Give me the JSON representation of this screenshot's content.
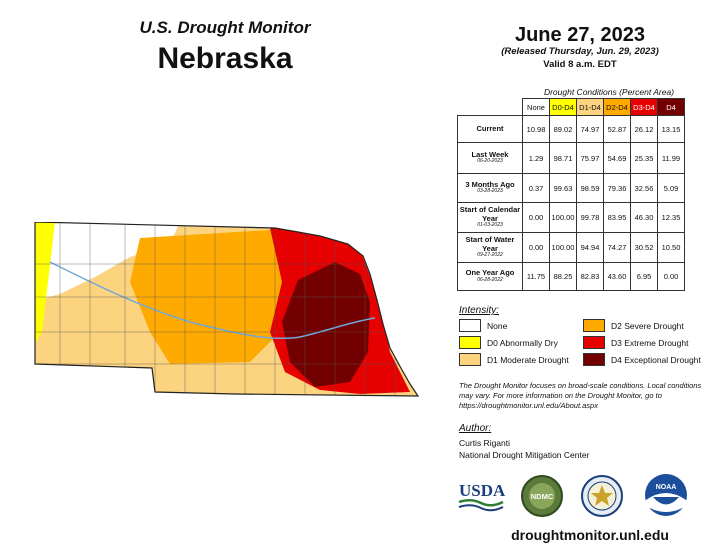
{
  "header": {
    "title": "U.S. Drought Monitor",
    "state": "Nebraska",
    "date": "June 27, 2023",
    "released": "(Released Thursday, Jun. 29, 2023)",
    "valid": "Valid 8 a.m. EDT"
  },
  "table": {
    "caption": "Drought Conditions (Percent Area)",
    "columns": [
      "None",
      "D0-D4",
      "D1-D4",
      "D2-D4",
      "D3-D4",
      "D4"
    ],
    "column_colors": [
      "#ffffff",
      "#ffff00",
      "#fcd37f",
      "#ffaa00",
      "#e60000",
      "#730000"
    ],
    "rows": [
      {
        "label": "Current",
        "sub": "",
        "values": [
          "10.98",
          "89.02",
          "74.97",
          "52.87",
          "26.12",
          "13.15"
        ]
      },
      {
        "label": "Last Week",
        "sub": "06-20-2023",
        "values": [
          "1.29",
          "98.71",
          "75.97",
          "54.69",
          "25.35",
          "11.99"
        ]
      },
      {
        "label": "3 Months Ago",
        "sub": "03-28-2023",
        "values": [
          "0.37",
          "99.63",
          "98.59",
          "79.36",
          "32.56",
          "5.09"
        ]
      },
      {
        "label": "Start of Calendar Year",
        "sub": "01-03-2023",
        "values": [
          "0.00",
          "100.00",
          "99.78",
          "83.95",
          "46.30",
          "12.35"
        ]
      },
      {
        "label": "Start of Water Year",
        "sub": "09-27-2022",
        "values": [
          "0.00",
          "100.00",
          "94.94",
          "74.27",
          "30.52",
          "10.50"
        ]
      },
      {
        "label": "One Year Ago",
        "sub": "06-28-2022",
        "values": [
          "11.75",
          "88.25",
          "82.83",
          "43.60",
          "6.95",
          "0.00"
        ]
      }
    ]
  },
  "legend": {
    "title": "Intensity:",
    "items": [
      {
        "label": "None",
        "color": "#ffffff"
      },
      {
        "label": "D0 Abnormally Dry",
        "color": "#ffff00"
      },
      {
        "label": "D1 Moderate Drought",
        "color": "#fcd37f"
      },
      {
        "label": "D2 Severe Drought",
        "color": "#ffaa00"
      },
      {
        "label": "D3 Extreme Drought",
        "color": "#e60000"
      },
      {
        "label": "D4 Exceptional Drought",
        "color": "#730000"
      }
    ]
  },
  "note": "The Drought Monitor focuses on broad-scale conditions. Local conditions may vary. For more information on the Drought Monitor, go to https://droughtmonitor.unl.edu/About.aspx",
  "author": {
    "label": "Author:",
    "name": "Curtis Riganti",
    "org": "National Drought Mitigation Center"
  },
  "logos": {
    "usda": "USDA",
    "ndmc": "NDMC",
    "noaa": "NOAA"
  },
  "footer_url": "droughtmonitor.unl.edu",
  "map": {
    "region": "Nebraska",
    "colors": {
      "none": "#ffffff",
      "d0": "#ffff00",
      "d1": "#fcd37f",
      "d2": "#ffaa00",
      "d3": "#e60000",
      "d4": "#730000",
      "river": "#6fa8dc"
    }
  }
}
